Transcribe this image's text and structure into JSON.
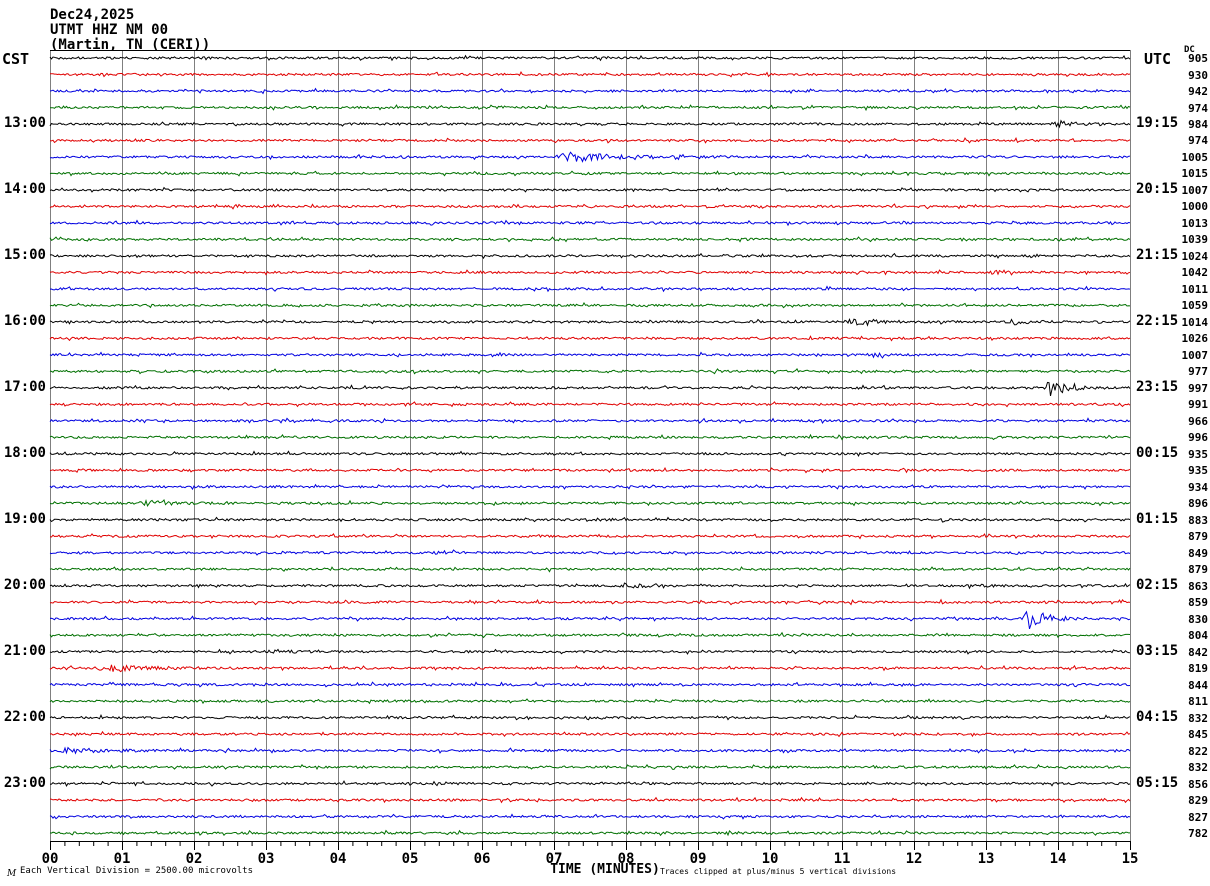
{
  "header": {
    "date_line": "Dec24,2025",
    "station_line": "UTMT HHZ NM 00",
    "location_line": "(Martin, TN (CERI))"
  },
  "labels": {
    "left_tz": "CST",
    "right_tz": "UTC",
    "dc_label": "DC",
    "x_axis_title": "TIME (MINUTES)"
  },
  "footer": {
    "scale_note": "Each Vertical Division = 2500.00 microvolts",
    "clip_note": "Traces clipped at plus/minus 5 vertical divisions",
    "watermark": "M"
  },
  "colors": {
    "black": "#000000",
    "red": "#e00000",
    "blue": "#0000e0",
    "green": "#007000",
    "grid": "#7f7f7f"
  },
  "chart_data": {
    "type": "line",
    "title": "UTMT HHZ NM 00 (Martin, TN (CERI)) Dec24,2025",
    "xlabel": "TIME (MINUTES)",
    "x_axis": {
      "min": 0,
      "max": 15,
      "ticks": [
        "00",
        "01",
        "02",
        "03",
        "04",
        "05",
        "06",
        "07",
        "08",
        "09",
        "10",
        "11",
        "12",
        "13",
        "14",
        "15"
      ],
      "minor_per_major": 5
    },
    "row_interval_minutes": 15,
    "trace_color_cycle": [
      "black",
      "red",
      "blue",
      "green"
    ],
    "rows": [
      {
        "cst_label": "",
        "utc_label": "",
        "dc": 905,
        "color": "black",
        "events": []
      },
      {
        "cst_label": "",
        "utc_label": "",
        "dc": 930,
        "color": "red",
        "events": []
      },
      {
        "cst_label": "",
        "utc_label": "",
        "dc": 942,
        "color": "blue",
        "events": []
      },
      {
        "cst_label": "",
        "utc_label": "",
        "dc": 974,
        "color": "green",
        "events": []
      },
      {
        "cst_label": "13:00",
        "utc_label": "19:15",
        "dc": 984,
        "color": "black",
        "events": [
          [
            13.9,
            0.5,
            3
          ]
        ]
      },
      {
        "cst_label": "",
        "utc_label": "",
        "dc": 974,
        "color": "red",
        "events": []
      },
      {
        "cst_label": "",
        "utc_label": "",
        "dc": 1005,
        "color": "blue",
        "events": [
          [
            7.0,
            1.2,
            5
          ],
          [
            8.6,
            0.6,
            1.5
          ]
        ]
      },
      {
        "cst_label": "",
        "utc_label": "",
        "dc": 1015,
        "color": "green",
        "events": []
      },
      {
        "cst_label": "14:00",
        "utc_label": "20:15",
        "dc": 1007,
        "color": "black",
        "events": []
      },
      {
        "cst_label": "",
        "utc_label": "",
        "dc": 1000,
        "color": "red",
        "events": []
      },
      {
        "cst_label": "",
        "utc_label": "",
        "dc": 1013,
        "color": "blue",
        "events": []
      },
      {
        "cst_label": "",
        "utc_label": "",
        "dc": 1039,
        "color": "green",
        "events": []
      },
      {
        "cst_label": "15:00",
        "utc_label": "21:15",
        "dc": 1024,
        "color": "black",
        "events": []
      },
      {
        "cst_label": "",
        "utc_label": "",
        "dc": 1042,
        "color": "red",
        "events": [
          [
            13.0,
            0.4,
            1.5
          ]
        ]
      },
      {
        "cst_label": "",
        "utc_label": "",
        "dc": 1011,
        "color": "blue",
        "events": []
      },
      {
        "cst_label": "",
        "utc_label": "",
        "dc": 1059,
        "color": "green",
        "events": []
      },
      {
        "cst_label": "16:00",
        "utc_label": "22:15",
        "dc": 1014,
        "color": "black",
        "events": [
          [
            11.0,
            0.8,
            3.5
          ],
          [
            13.3,
            0.5,
            2.5
          ]
        ]
      },
      {
        "cst_label": "",
        "utc_label": "",
        "dc": 1026,
        "color": "red",
        "events": []
      },
      {
        "cst_label": "",
        "utc_label": "",
        "dc": 1007,
        "color": "blue",
        "events": [
          [
            11.3,
            0.4,
            2.5
          ]
        ]
      },
      {
        "cst_label": "",
        "utc_label": "",
        "dc": 977,
        "color": "green",
        "events": []
      },
      {
        "cst_label": "17:00",
        "utc_label": "23:15",
        "dc": 997,
        "color": "black",
        "events": [
          [
            13.8,
            0.5,
            8
          ]
        ]
      },
      {
        "cst_label": "",
        "utc_label": "",
        "dc": 991,
        "color": "red",
        "events": []
      },
      {
        "cst_label": "",
        "utc_label": "",
        "dc": 966,
        "color": "blue",
        "events": []
      },
      {
        "cst_label": "",
        "utc_label": "",
        "dc": 996,
        "color": "green",
        "events": []
      },
      {
        "cst_label": "18:00",
        "utc_label": "00:15",
        "dc": 935,
        "color": "black",
        "events": []
      },
      {
        "cst_label": "",
        "utc_label": "",
        "dc": 935,
        "color": "red",
        "events": []
      },
      {
        "cst_label": "",
        "utc_label": "",
        "dc": 934,
        "color": "blue",
        "events": []
      },
      {
        "cst_label": "",
        "utc_label": "",
        "dc": 896,
        "color": "green",
        "events": [
          [
            1.2,
            0.8,
            2
          ]
        ]
      },
      {
        "cst_label": "19:00",
        "utc_label": "01:15",
        "dc": 883,
        "color": "black",
        "events": []
      },
      {
        "cst_label": "",
        "utc_label": "",
        "dc": 879,
        "color": "red",
        "events": []
      },
      {
        "cst_label": "",
        "utc_label": "",
        "dc": 849,
        "color": "blue",
        "events": [
          [
            5.3,
            0.4,
            1.5
          ]
        ]
      },
      {
        "cst_label": "",
        "utc_label": "",
        "dc": 879,
        "color": "green",
        "events": []
      },
      {
        "cst_label": "20:00",
        "utc_label": "02:15",
        "dc": 863,
        "color": "black",
        "events": [
          [
            7.9,
            0.5,
            2.5
          ],
          [
            12.7,
            0.4,
            2
          ]
        ]
      },
      {
        "cst_label": "",
        "utc_label": "",
        "dc": 859,
        "color": "red",
        "events": []
      },
      {
        "cst_label": "",
        "utc_label": "",
        "dc": 830,
        "color": "blue",
        "events": [
          [
            13.5,
            0.5,
            12
          ]
        ]
      },
      {
        "cst_label": "",
        "utc_label": "",
        "dc": 804,
        "color": "green",
        "events": []
      },
      {
        "cst_label": "21:00",
        "utc_label": "03:15",
        "dc": 842,
        "color": "black",
        "events": [
          [
            3.0,
            0.5,
            1.5
          ]
        ]
      },
      {
        "cst_label": "",
        "utc_label": "",
        "dc": 819,
        "color": "red",
        "events": [
          [
            0.6,
            1.1,
            3.5
          ]
        ]
      },
      {
        "cst_label": "",
        "utc_label": "",
        "dc": 844,
        "color": "blue",
        "events": []
      },
      {
        "cst_label": "",
        "utc_label": "",
        "dc": 811,
        "color": "green",
        "events": []
      },
      {
        "cst_label": "22:00",
        "utc_label": "04:15",
        "dc": 832,
        "color": "black",
        "events": []
      },
      {
        "cst_label": "",
        "utc_label": "",
        "dc": 845,
        "color": "red",
        "events": []
      },
      {
        "cst_label": "",
        "utc_label": "",
        "dc": 822,
        "color": "blue",
        "events": [
          [
            0.1,
            0.9,
            2.5
          ]
        ]
      },
      {
        "cst_label": "",
        "utc_label": "",
        "dc": 832,
        "color": "green",
        "events": []
      },
      {
        "cst_label": "23:00",
        "utc_label": "05:15",
        "dc": 856,
        "color": "black",
        "events": []
      },
      {
        "cst_label": "",
        "utc_label": "",
        "dc": 829,
        "color": "red",
        "events": []
      },
      {
        "cst_label": "",
        "utc_label": "",
        "dc": 827,
        "color": "blue",
        "events": []
      },
      {
        "cst_label": "",
        "utc_label": "",
        "dc": 782,
        "color": "green",
        "events": []
      }
    ]
  }
}
